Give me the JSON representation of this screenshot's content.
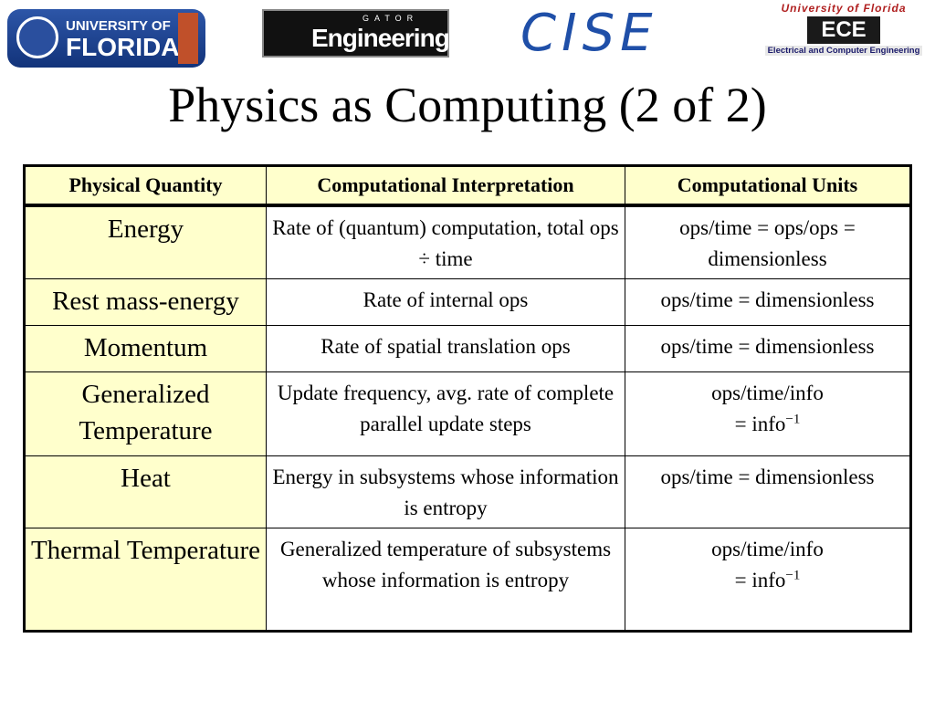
{
  "header": {
    "logos": {
      "uf": {
        "line1": "UNIVERSITY OF",
        "line2": "FLORIDA"
      },
      "gator": {
        "small": "GATOR",
        "main": "Engineering"
      },
      "cise": "CISE",
      "ece": {
        "top": "University of Florida",
        "mark": "ECE",
        "bottom": "Electrical and Computer Engineering"
      }
    },
    "title": "Physics as Computing (2 of 2)"
  },
  "table": {
    "columns": [
      "Physical Quantity",
      "Computational Interpretation",
      "Computational Units"
    ],
    "rows": [
      [
        "Energy",
        "Rate of (quantum) computation, total ops ÷ time",
        "ops/time = ops/ops = dimensionless"
      ],
      [
        "Rest mass-energy",
        "Rate of internal ops",
        "ops/time = dimensionless"
      ],
      [
        "Momentum",
        "Rate of spatial translation ops",
        "ops/time = dimensionless"
      ],
      [
        "Generalized Temperature",
        "Update frequency, avg. rate of complete parallel update steps",
        {
          "lines": [
            "ops/time/info",
            "= info"
          ],
          "superscript": "−1"
        }
      ],
      [
        "Heat",
        "Energy in subsystems whose information is entropy",
        "ops/time = dimensionless"
      ],
      [
        "Thermal Temperature",
        "Generalized temperature of subsystems whose information is entropy",
        {
          "lines": [
            "ops/time/info",
            "= info"
          ],
          "superscript": "−1"
        }
      ]
    ]
  }
}
